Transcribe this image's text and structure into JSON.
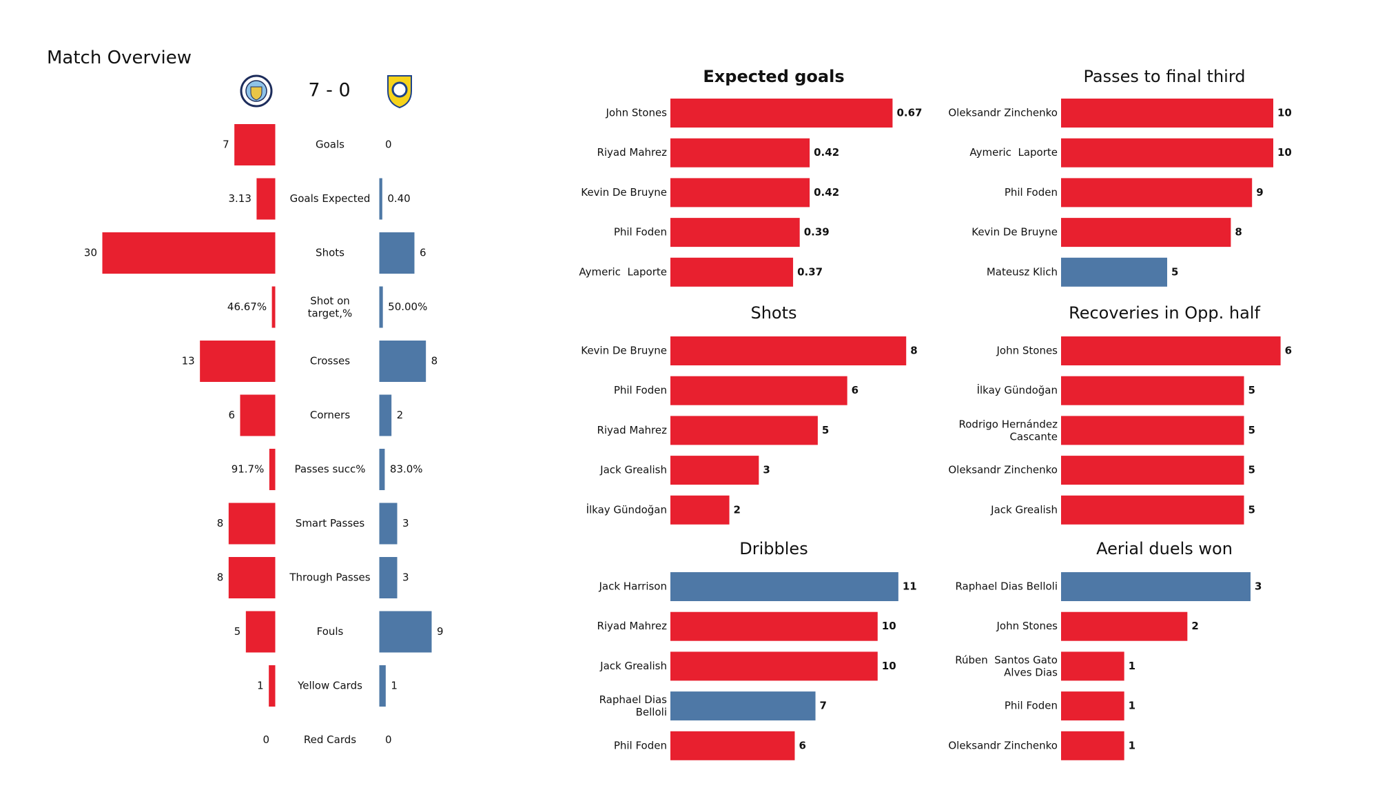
{
  "chart_data": [
    {
      "type": "butterfly",
      "title": "Match Overview",
      "score": "7 - 0",
      "categories": [
        "Goals",
        "Goals Expected",
        "Shots",
        "Shot on\ntarget,%",
        "Crosses",
        "Corners",
        "Passes succ%",
        "Smart Passes",
        "Through Passes",
        "Fouls",
        "Yellow Cards",
        "Red Cards"
      ],
      "xlim": [
        0,
        30
      ],
      "series": [
        {
          "color": "#e8202f",
          "values": [
            7,
            3.13,
            30,
            0.4667,
            13,
            6,
            0.917,
            8,
            8,
            5,
            1,
            0
          ],
          "value_labels": [
            "7",
            "3.13",
            "30",
            "46.67%",
            "13",
            "6",
            "91.7%",
            "8",
            "8",
            "5",
            "1",
            "0"
          ]
        },
        {
          "color": "#4e78a6",
          "values": [
            0,
            0.4,
            6,
            0.5,
            8,
            2,
            0.83,
            3,
            3,
            9,
            1,
            0
          ],
          "value_labels": [
            "0",
            "0.40",
            "6",
            "50.00%",
            "8",
            "2",
            "83.0%",
            "3",
            "3",
            "9",
            "1",
            "0"
          ]
        }
      ]
    },
    {
      "type": "barh",
      "title": "Expected goals",
      "xlim": [
        0,
        0.8
      ],
      "categories": [
        "John Stones",
        "Riyad Mahrez",
        "Kevin De Bruyne",
        "Phil Foden",
        "Aymeric  Laporte"
      ],
      "values": [
        0.67,
        0.42,
        0.42,
        0.39,
        0.37
      ],
      "colors": [
        "#e8202f",
        "#e8202f",
        "#e8202f",
        "#e8202f",
        "#e8202f"
      ]
    },
    {
      "type": "barh",
      "title": "Passes to final third",
      "xlim": [
        0,
        12.5
      ],
      "categories": [
        "Oleksandr Zinchenko",
        "Aymeric  Laporte",
        "Phil Foden",
        "Kevin De Bruyne",
        "Mateusz Klich"
      ],
      "values": [
        10,
        10,
        9,
        8,
        5
      ],
      "colors": [
        "#e8202f",
        "#e8202f",
        "#e8202f",
        "#e8202f",
        "#4e78a6"
      ]
    },
    {
      "type": "barh",
      "title": "Shots",
      "xlim": [
        0,
        9
      ],
      "categories": [
        "Kevin De Bruyne",
        "Phil Foden",
        "Riyad Mahrez",
        "Jack Grealish",
        "İlkay Gündoğan"
      ],
      "values": [
        8,
        6,
        5,
        3,
        2
      ],
      "colors": [
        "#e8202f",
        "#e8202f",
        "#e8202f",
        "#e8202f",
        "#e8202f"
      ]
    },
    {
      "type": "barh",
      "title": "Recoveries in Opp. half",
      "xlim": [
        0,
        7.25
      ],
      "categories": [
        "John Stones",
        "İlkay Gündoğan",
        "Rodrigo Hernández\nCascante",
        "Oleksandr Zinchenko",
        "Jack Grealish"
      ],
      "values": [
        6,
        5,
        5,
        5,
        5
      ],
      "colors": [
        "#e8202f",
        "#e8202f",
        "#e8202f",
        "#e8202f",
        "#e8202f"
      ]
    },
    {
      "type": "barh",
      "title": "Dribbles",
      "xlim": [
        0,
        12.8
      ],
      "categories": [
        "Jack Harrison",
        "Riyad Mahrez",
        "Jack Grealish",
        "Raphael Dias\nBelloli",
        "Phil Foden"
      ],
      "values": [
        11,
        10,
        10,
        7,
        6
      ],
      "colors": [
        "#4e78a6",
        "#e8202f",
        "#e8202f",
        "#4e78a6",
        "#e8202f"
      ]
    },
    {
      "type": "barh",
      "title": "Aerial duels won",
      "xlim": [
        0,
        4.2
      ],
      "categories": [
        "Raphael Dias Belloli",
        "John Stones",
        "Rúben  Santos Gato\nAlves Dias",
        "Phil Foden",
        "Oleksandr Zinchenko"
      ],
      "values": [
        3,
        2,
        1,
        1,
        1
      ],
      "colors": [
        "#4e78a6",
        "#e8202f",
        "#e8202f",
        "#e8202f",
        "#e8202f"
      ]
    }
  ]
}
